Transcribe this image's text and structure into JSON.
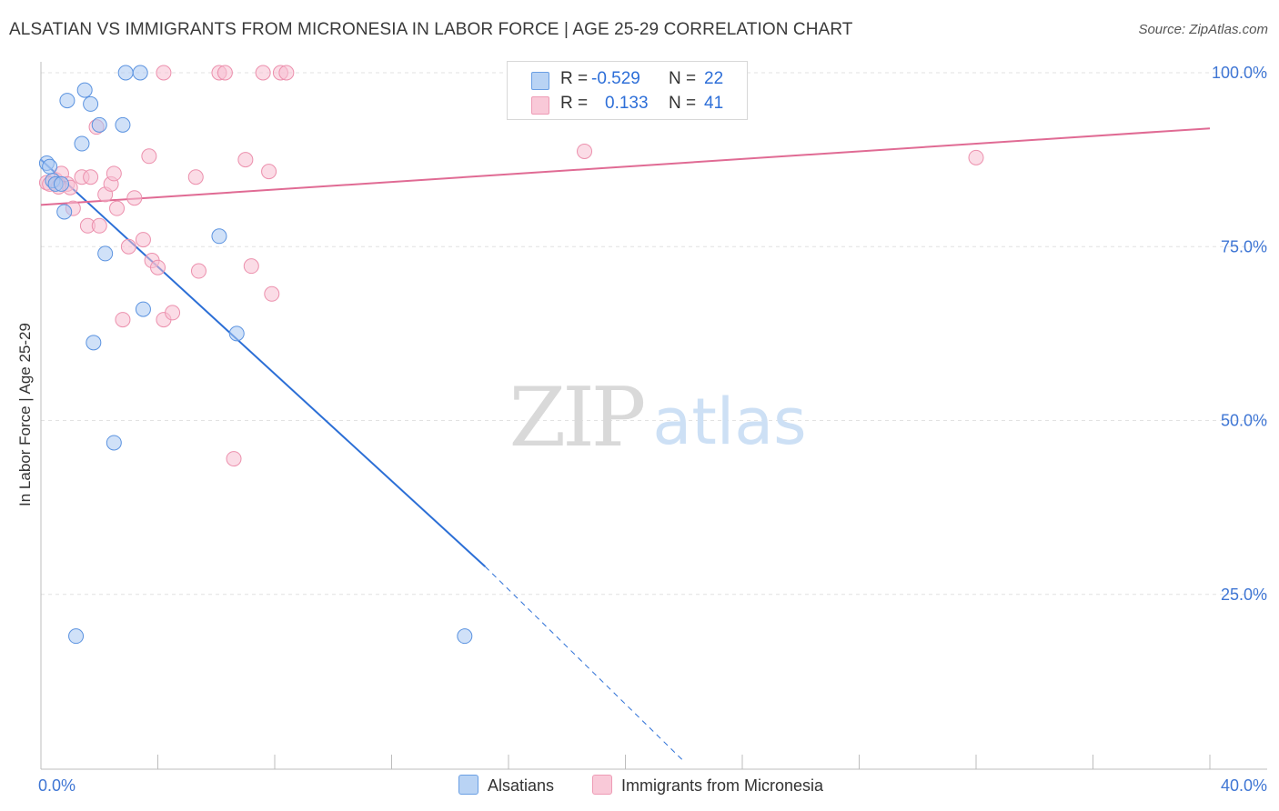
{
  "title": "ALSATIAN VS IMMIGRANTS FROM MICRONESIA IN LABOR FORCE | AGE 25-29 CORRELATION CHART",
  "source": "Source: ZipAtlas.com",
  "watermark": {
    "zip": "ZIP",
    "atlas": "atlas"
  },
  "legend": {
    "rows": [
      {
        "r_label": "R =",
        "r_value": "-0.529",
        "n_label": "N =",
        "n_value": "22"
      },
      {
        "r_label": "R =",
        "r_value": "0.133",
        "n_label": "N =",
        "n_value": "41"
      }
    ]
  },
  "bottom_legend": {
    "alsatians": "Alsatians",
    "micronesia": "Immigrants from Micronesia"
  },
  "colors": {
    "alsatians_fill": "#a9c8f2",
    "alsatians_stroke": "#5b93e0",
    "alsatians_line": "#2c6fd6",
    "micronesia_fill": "#f7c0d1",
    "micronesia_stroke": "#ec90ad",
    "micronesia_line": "#e06b94",
    "tick_label": "#3f76d4",
    "grid": "#e2e2e2"
  },
  "chart_data": {
    "type": "scatter",
    "title": "ALSATIAN VS IMMIGRANTS FROM MICRONESIA IN LABOR FORCE | AGE 25-29 CORRELATION CHART",
    "xlabel": "",
    "ylabel": "In Labor Force | Age 25-29",
    "xlim": [
      0,
      40
    ],
    "ylim": [
      0,
      105
    ],
    "x_tick_labels": [
      "0.0%",
      "40.0%"
    ],
    "y_ticks": [
      25,
      50,
      75,
      100
    ],
    "y_tick_labels": [
      "25.0%",
      "50.0%",
      "75.0%",
      "100.0%"
    ],
    "grid": true,
    "series": [
      {
        "name": "Alsatians",
        "r": -0.529,
        "n": 22,
        "points": [
          [
            0.2,
            87.0
          ],
          [
            0.3,
            86.5
          ],
          [
            0.4,
            84.5
          ],
          [
            0.5,
            84.0
          ],
          [
            0.7,
            84.0
          ],
          [
            0.8,
            80.0
          ],
          [
            0.9,
            96.0
          ],
          [
            1.4,
            89.8
          ],
          [
            1.5,
            97.5
          ],
          [
            1.7,
            95.5
          ],
          [
            2.0,
            92.5
          ],
          [
            2.2,
            74.0
          ],
          [
            1.8,
            61.2
          ],
          [
            1.2,
            19.0
          ],
          [
            2.5,
            46.8
          ],
          [
            2.8,
            92.5
          ],
          [
            2.9,
            100.0
          ],
          [
            3.4,
            100.0
          ],
          [
            3.5,
            66.0
          ],
          [
            6.1,
            76.5
          ],
          [
            6.7,
            62.5
          ],
          [
            14.5,
            19.0
          ]
        ],
        "trend": {
          "x_start": 0,
          "y_start": 87.5,
          "x_solid_end": 15.2,
          "y_solid_end": 29.0,
          "x_end": 22.0,
          "y_end": 1.0
        }
      },
      {
        "name": "Immigrants from Micronesia",
        "r": 0.133,
        "n": 41,
        "points": [
          [
            0.2,
            84.2
          ],
          [
            0.5,
            84.6
          ],
          [
            0.7,
            85.5
          ],
          [
            0.9,
            84.0
          ],
          [
            1.0,
            83.5
          ],
          [
            1.1,
            80.5
          ],
          [
            1.4,
            85.0
          ],
          [
            1.6,
            78.0
          ],
          [
            1.7,
            85.0
          ],
          [
            1.9,
            92.2
          ],
          [
            2.0,
            78.0
          ],
          [
            2.2,
            82.5
          ],
          [
            2.4,
            84.0
          ],
          [
            2.5,
            85.5
          ],
          [
            2.6,
            80.5
          ],
          [
            2.8,
            64.5
          ],
          [
            3.0,
            75.0
          ],
          [
            3.2,
            82.0
          ],
          [
            3.5,
            76.0
          ],
          [
            3.7,
            88.0
          ],
          [
            3.8,
            73.0
          ],
          [
            4.0,
            72.0
          ],
          [
            4.2,
            64.5
          ],
          [
            4.5,
            65.5
          ],
          [
            4.2,
            100.0
          ],
          [
            5.3,
            85.0
          ],
          [
            5.4,
            71.5
          ],
          [
            6.1,
            100.0
          ],
          [
            6.3,
            100.0
          ],
          [
            6.6,
            44.5
          ],
          [
            7.0,
            87.5
          ],
          [
            7.2,
            72.2
          ],
          [
            7.6,
            100.0
          ],
          [
            7.8,
            85.8
          ],
          [
            7.9,
            68.2
          ],
          [
            8.2,
            100.0
          ],
          [
            8.4,
            100.0
          ],
          [
            18.6,
            88.7
          ],
          [
            32.0,
            87.8
          ],
          [
            0.3,
            84.0
          ],
          [
            0.6,
            83.6
          ]
        ],
        "trend": {
          "x_start": 0,
          "y_start": 81.0,
          "x_end": 40.0,
          "y_end": 92.0
        }
      }
    ]
  }
}
